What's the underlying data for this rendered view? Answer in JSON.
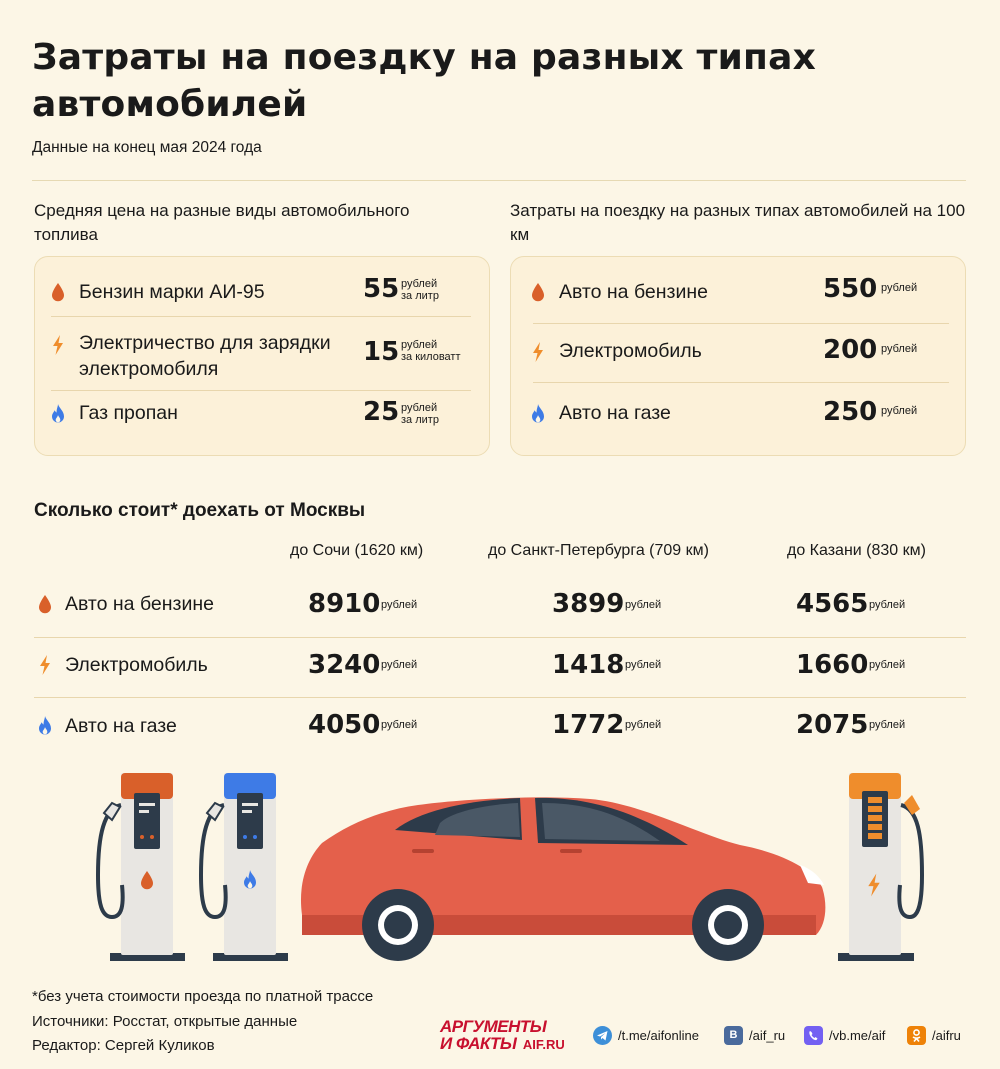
{
  "title": "Затраты на поездку на разных типах автомобилей",
  "subtitle": "Данные на конец мая 2024 года",
  "fuel_prices": {
    "heading": "Средняя цена на разные виды автомобильного топлива",
    "rows": [
      {
        "icon": "drop-icon",
        "label": "Бензин марки АИ-95",
        "value": "55",
        "unit_top": "рублей",
        "unit_bottom": "за литр"
      },
      {
        "icon": "bolt-icon",
        "label": "Электричество для зарядки электромобиля",
        "value": "15",
        "unit_top": "рублей",
        "unit_bottom": "за киловатт"
      },
      {
        "icon": "flame-icon",
        "label": "Газ пропан",
        "value": "25",
        "unit_top": "рублей",
        "unit_bottom": "за литр"
      }
    ]
  },
  "cost_100km": {
    "heading": "Затраты на поездку на разных типах автомобилей на 100 км",
    "rows": [
      {
        "icon": "drop-icon",
        "label": "Авто на бензине",
        "value": "550",
        "unit": "рублей"
      },
      {
        "icon": "bolt-icon",
        "label": "Электромобиль",
        "value": "200",
        "unit": "рублей"
      },
      {
        "icon": "flame-icon",
        "label": "Авто на газе",
        "value": "250",
        "unit": "рублей"
      }
    ]
  },
  "trips": {
    "heading": "Сколько стоит* доехать от Москвы",
    "columns": [
      "до Сочи (1620 км)",
      "до Санкт-Петербурга (709 км)",
      "до Казани (830 км)"
    ],
    "unit": "рублей",
    "rows": [
      {
        "icon": "drop-icon",
        "label": "Авто на бензине",
        "values": [
          "8910",
          "3899",
          "4565"
        ]
      },
      {
        "icon": "bolt-icon",
        "label": "Электромобиль",
        "values": [
          "3240",
          "1418",
          "1660"
        ]
      },
      {
        "icon": "flame-icon",
        "label": "Авто на газе",
        "values": [
          "4050",
          "1772",
          "2075"
        ]
      }
    ]
  },
  "footer": {
    "note": "*без учета стоимости проезда по платной трассе",
    "sources": "Источники: Росстат, открытые данные",
    "editor": "Редактор: Сергей Куликов"
  },
  "brand": {
    "line1": "АРГУМЕНТЫ",
    "line2": "И ФАКТЫ",
    "site": "AIF.RU"
  },
  "social": [
    {
      "icon": "telegram-icon",
      "text": "/t.me/aifonline"
    },
    {
      "icon": "vk-icon",
      "text": "/aif_ru"
    },
    {
      "icon": "viber-icon",
      "text": "/vb.me/aif"
    },
    {
      "icon": "odnoklassniki-icon",
      "text": "/aifru"
    }
  ],
  "colors": {
    "background": "#fcf6e6",
    "card": "#fcf1d9",
    "petrol": "#d9602a",
    "electric": "#ef8d2c",
    "gas": "#3e7be6",
    "car": "#e4604b",
    "brand": "#c8102e"
  }
}
